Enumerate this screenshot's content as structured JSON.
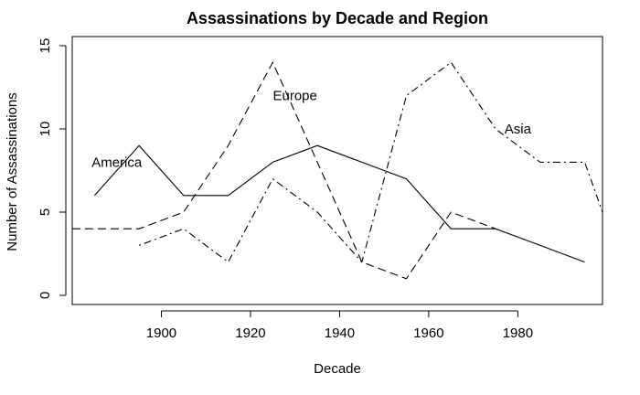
{
  "chart_data": {
    "type": "line",
    "title": "Assassinations by Decade and Region",
    "xlabel": "Decade",
    "ylabel": "Number of Assassinations",
    "xlim": [
      1880,
      1999
    ],
    "ylim": [
      0,
      15
    ],
    "xticks": [
      1900,
      1920,
      1940,
      1960,
      1980
    ],
    "yticks": [
      0,
      5,
      10,
      15
    ],
    "grid": false,
    "series": [
      {
        "name": "America",
        "line_style": "solid",
        "label_at": [
          1890,
          8
        ],
        "points": [
          [
            1885,
            6
          ],
          [
            1895,
            9
          ],
          [
            1905,
            6
          ],
          [
            1915,
            6
          ],
          [
            1925,
            8
          ],
          [
            1935,
            9
          ],
          [
            1945,
            8
          ],
          [
            1955,
            7
          ],
          [
            1965,
            4
          ],
          [
            1975,
            4
          ],
          [
            1985,
            3
          ],
          [
            1995,
            2
          ]
        ]
      },
      {
        "name": "Europe",
        "line_style": "dashed",
        "label_at": [
          1930,
          12
        ],
        "points": [
          [
            1880,
            4
          ],
          [
            1895,
            4
          ],
          [
            1905,
            5
          ],
          [
            1915,
            9
          ],
          [
            1925,
            14
          ],
          [
            1935,
            8
          ],
          [
            1945,
            2
          ],
          [
            1955,
            1
          ],
          [
            1965,
            5
          ],
          [
            1975,
            4
          ]
        ]
      },
      {
        "name": "Asia",
        "line_style": "dotdash",
        "label_at": [
          1980,
          10
        ],
        "points": [
          [
            1895,
            3
          ],
          [
            1905,
            4
          ],
          [
            1915,
            2
          ],
          [
            1925,
            7
          ],
          [
            1935,
            5
          ],
          [
            1945,
            2
          ],
          [
            1955,
            12
          ],
          [
            1965,
            14
          ],
          [
            1975,
            10
          ],
          [
            1985,
            8
          ],
          [
            1995,
            8
          ],
          [
            1999,
            5
          ]
        ]
      }
    ]
  }
}
